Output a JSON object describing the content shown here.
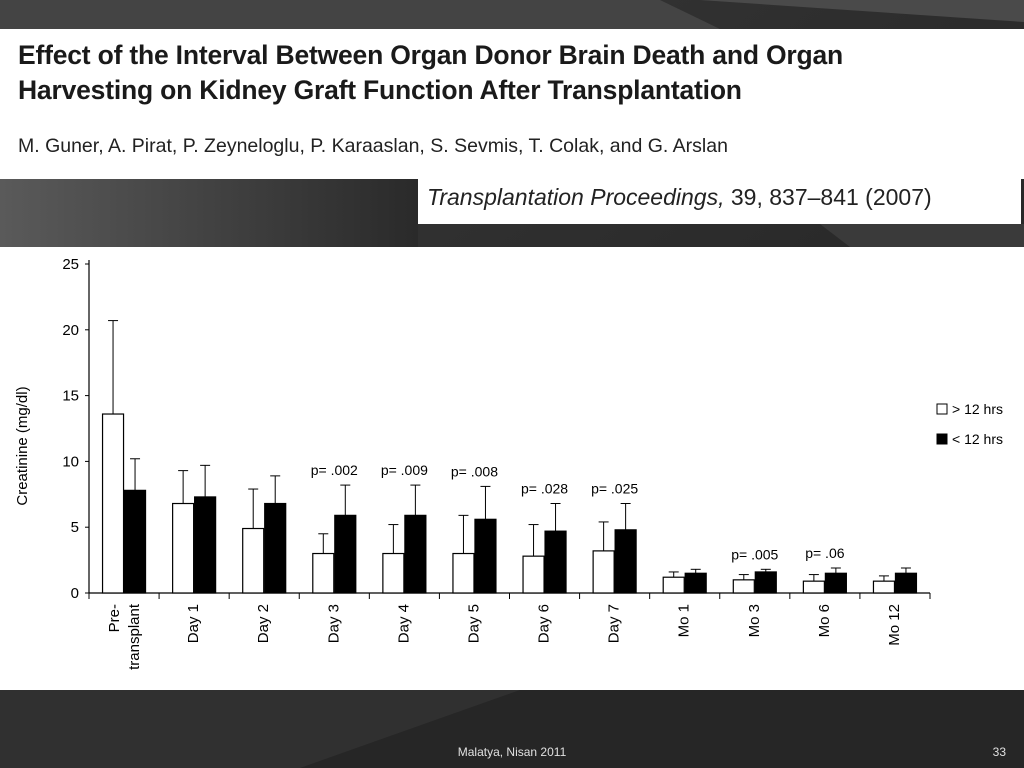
{
  "slide": {
    "title_line1": "Effect of the Interval Between Organ Donor Brain Death and Organ",
    "title_line2": "Harvesting on Kidney Graft Function After Transplantation",
    "authors": "M. Guner, A. Pirat, P. Zeyneloglu, P. Karaaslan, S. Sevmis, T. Colak, and G. Arslan",
    "journal_name": "Transplantation Proceedings,",
    "journal_ref": " 39, 837–841 (2007)",
    "footer": "Malatya, Nisan 2011",
    "page_number": "33"
  },
  "colors": {
    "background": "#2b2b2b",
    "panel": "#ffffff",
    "bar_open": "#ffffff",
    "bar_filled": "#000000"
  },
  "chart_data": {
    "type": "bar",
    "ylabel": "Creatinine (mg/dl)",
    "xlabel": "",
    "ylim": [
      0,
      25
    ],
    "yticks": [
      0,
      5,
      10,
      15,
      20,
      25
    ],
    "categories": [
      "Pre-\ntransplant",
      "Day 1",
      "Day 2",
      "Day 3",
      "Day 4",
      "Day 5",
      "Day 6",
      "Day 7",
      "Mo 1",
      "Mo 3",
      "Mo 6",
      "Mo 12"
    ],
    "series": [
      {
        "name": "> 12 hrs",
        "fill": "open",
        "values": [
          13.6,
          6.8,
          4.9,
          3.0,
          3.0,
          3.0,
          2.8,
          3.2,
          1.2,
          1.0,
          0.9,
          0.9
        ],
        "error_upper": [
          20.7,
          9.3,
          7.9,
          4.5,
          5.2,
          5.9,
          5.2,
          5.4,
          1.6,
          1.4,
          1.4,
          1.3
        ]
      },
      {
        "name": "< 12 hrs",
        "fill": "filled",
        "values": [
          7.8,
          7.3,
          6.8,
          5.9,
          5.9,
          5.6,
          4.7,
          4.8,
          1.5,
          1.6,
          1.5,
          1.5
        ],
        "error_upper": [
          10.2,
          9.7,
          8.9,
          8.2,
          8.2,
          8.1,
          6.8,
          6.8,
          1.8,
          1.8,
          1.9,
          1.9
        ]
      }
    ],
    "annotations": [
      {
        "category": "Day 3",
        "text": "p= .002"
      },
      {
        "category": "Day 4",
        "text": "p= .009"
      },
      {
        "category": "Day 5",
        "text": "p= .008"
      },
      {
        "category": "Day 6",
        "text": "p= .028"
      },
      {
        "category": "Day 7",
        "text": "p= .025"
      },
      {
        "category": "Mo 3",
        "text": "p= .005"
      },
      {
        "category": "Mo 6",
        "text": "p= .06"
      }
    ],
    "legend": "right",
    "grid": false
  }
}
